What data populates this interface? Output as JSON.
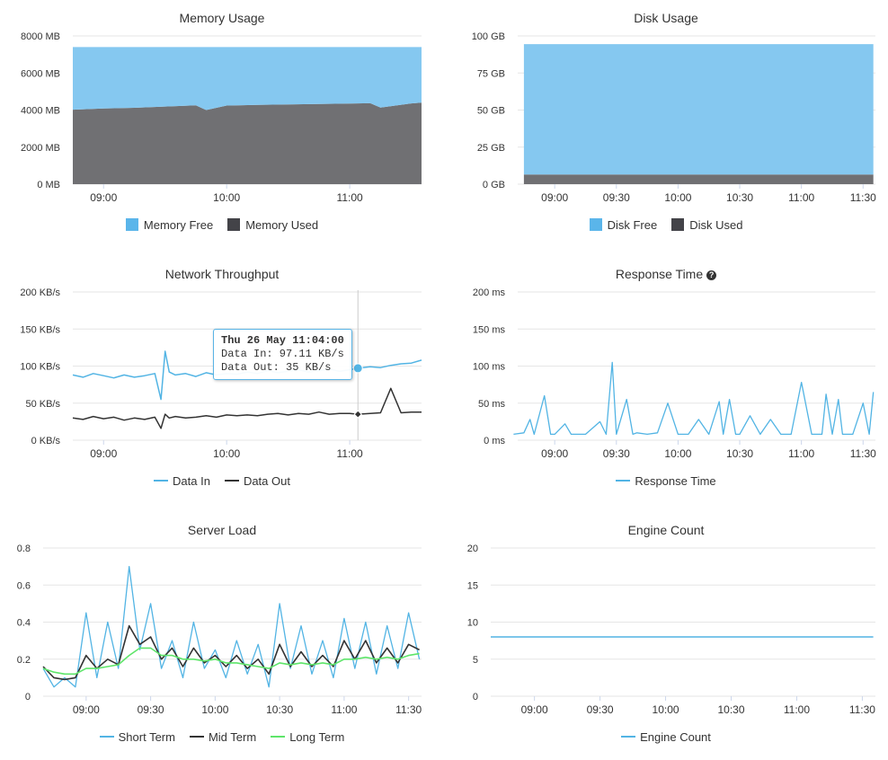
{
  "colors": {
    "free_fill": "#85c8f0",
    "used_fill": "#707073",
    "series_blue": "#52b4e4",
    "series_dark": "#333333",
    "series_green": "#5ee56a",
    "grid": "#e6e6e6"
  },
  "memory": {
    "title": "Memory Usage",
    "y_ticks": [
      "8000 MB",
      "6000 MB",
      "4000 MB",
      "2000 MB",
      "0 MB"
    ],
    "x_ticks": [
      "09:00",
      "10:00",
      "11:00"
    ],
    "legend": [
      {
        "label": "Memory Free",
        "color": "#5ab5ea",
        "icon": "square"
      },
      {
        "label": "Memory Used",
        "color": "#434348",
        "icon": "square"
      }
    ]
  },
  "disk": {
    "title": "Disk Usage",
    "y_ticks": [
      "100 GB",
      "75 GB",
      "50 GB",
      "25 GB",
      "0 GB"
    ],
    "x_ticks": [
      "09:00",
      "09:30",
      "10:00",
      "10:30",
      "11:00",
      "11:30"
    ],
    "legend": [
      {
        "label": "Disk Free",
        "color": "#5ab5ea",
        "icon": "square"
      },
      {
        "label": "Disk Used",
        "color": "#434348",
        "icon": "square"
      }
    ]
  },
  "network": {
    "title": "Network Throughput",
    "y_ticks": [
      "200 KB/s",
      "150 KB/s",
      "100 KB/s",
      "50 KB/s",
      "0 KB/s"
    ],
    "x_ticks": [
      "09:00",
      "10:00",
      "11:00"
    ],
    "legend": [
      {
        "label": "Data In",
        "color": "#52b4e4",
        "icon": "line"
      },
      {
        "label": "Data Out",
        "color": "#333333",
        "icon": "line"
      }
    ],
    "tooltip": {
      "title": "Thu 26 May 11:04:00",
      "line1": "Data In: 97.11 KB/s",
      "line2": "Data Out: 35 KB/s"
    }
  },
  "response": {
    "title": "Response Time",
    "help_icon": "question-circle-icon",
    "y_ticks": [
      "200 ms",
      "150 ms",
      "100 ms",
      "50 ms",
      "0 ms"
    ],
    "x_ticks": [
      "09:00",
      "09:30",
      "10:00",
      "10:30",
      "11:00",
      "11:30"
    ],
    "legend": [
      {
        "label": "Response Time",
        "color": "#52b4e4",
        "icon": "line"
      }
    ]
  },
  "load": {
    "title": "Server Load",
    "y_ticks": [
      "0.8",
      "0.6",
      "0.4",
      "0.2",
      "0"
    ],
    "x_ticks": [
      "09:00",
      "09:30",
      "10:00",
      "10:30",
      "11:00",
      "11:30"
    ],
    "legend": [
      {
        "label": "Short Term",
        "color": "#52b4e4",
        "icon": "line"
      },
      {
        "label": "Mid Term",
        "color": "#333333",
        "icon": "line"
      },
      {
        "label": "Long Term",
        "color": "#5ee56a",
        "icon": "line"
      }
    ]
  },
  "engine": {
    "title": "Engine Count",
    "y_ticks": [
      "20",
      "15",
      "10",
      "5",
      "0"
    ],
    "x_ticks": [
      "09:00",
      "09:30",
      "10:00",
      "10:30",
      "11:00",
      "11:30"
    ],
    "legend": [
      {
        "label": "Engine Count",
        "color": "#52b4e4",
        "icon": "line"
      }
    ]
  },
  "chart_data": [
    {
      "type": "area",
      "title": "Memory Usage",
      "x_ticks": [
        "09:00",
        "10:00",
        "11:00"
      ],
      "ylim": [
        0,
        8000
      ],
      "y_unit": "MB",
      "stacked": true,
      "x": [
        "08:45",
        "09:00",
        "09:15",
        "09:30",
        "09:45",
        "09:50",
        "10:00",
        "10:15",
        "10:30",
        "10:45",
        "11:00",
        "11:10",
        "11:15",
        "11:30",
        "11:35"
      ],
      "series": [
        {
          "name": "Memory Used",
          "values": [
            4020,
            4080,
            4120,
            4190,
            4250,
            4000,
            4240,
            4280,
            4300,
            4330,
            4350,
            4370,
            4130,
            4360,
            4400
          ]
        },
        {
          "name": "Memory Free",
          "values": [
            3380,
            3320,
            3280,
            3210,
            3150,
            3400,
            3160,
            3120,
            3100,
            3070,
            3050,
            3030,
            3270,
            3040,
            3000
          ]
        }
      ],
      "legend": "bottom"
    },
    {
      "type": "area",
      "title": "Disk Usage",
      "x_ticks": [
        "09:00",
        "09:30",
        "10:00",
        "10:30",
        "11:00",
        "11:30"
      ],
      "ylim": [
        0,
        100
      ],
      "y_unit": "GB",
      "stacked": true,
      "x": [
        "08:45",
        "11:35"
      ],
      "series": [
        {
          "name": "Disk Used",
          "values": [
            6.5,
            6.5
          ]
        },
        {
          "name": "Disk Free",
          "values": [
            88,
            88
          ]
        }
      ],
      "legend": "bottom"
    },
    {
      "type": "line",
      "title": "Network Throughput",
      "x_ticks": [
        "09:00",
        "10:00",
        "11:00"
      ],
      "ylim": [
        0,
        200
      ],
      "y_unit": "KB/s",
      "x": [
        "08:45",
        "08:50",
        "08:55",
        "09:00",
        "09:05",
        "09:10",
        "09:15",
        "09:20",
        "09:25",
        "09:28",
        "09:30",
        "09:32",
        "09:35",
        "09:40",
        "09:45",
        "09:50",
        "09:55",
        "10:00",
        "10:05",
        "10:10",
        "10:15",
        "10:20",
        "10:25",
        "10:30",
        "10:35",
        "10:40",
        "10:45",
        "10:50",
        "10:55",
        "11:00",
        "11:04",
        "11:10",
        "11:15",
        "11:20",
        "11:25",
        "11:30",
        "11:35"
      ],
      "series": [
        {
          "name": "Data In",
          "values": [
            88,
            85,
            90,
            87,
            84,
            88,
            85,
            87,
            90,
            55,
            120,
            92,
            88,
            90,
            86,
            91,
            88,
            90,
            89,
            92,
            90,
            94,
            91,
            93,
            95,
            92,
            94,
            96,
            93,
            95,
            97.11,
            99,
            98,
            101,
            103,
            104,
            108
          ]
        },
        {
          "name": "Data Out",
          "values": [
            30,
            28,
            32,
            29,
            31,
            27,
            30,
            28,
            31,
            16,
            35,
            30,
            32,
            30,
            31,
            33,
            31,
            34,
            33,
            34,
            33,
            35,
            36,
            34,
            36,
            35,
            38,
            35,
            36,
            36,
            35,
            36,
            37,
            70,
            37,
            38,
            38
          ]
        }
      ],
      "annotations": [
        {
          "x": "11:04",
          "label": "Thu 26 May 11:04:00"
        }
      ],
      "legend": "bottom"
    },
    {
      "type": "line",
      "title": "Response Time",
      "x_ticks": [
        "09:00",
        "09:30",
        "10:00",
        "10:30",
        "11:00",
        "11:30"
      ],
      "ylim": [
        0,
        200
      ],
      "y_unit": "ms",
      "x": [
        "08:40",
        "08:45",
        "08:48",
        "08:50",
        "08:55",
        "08:58",
        "09:00",
        "09:05",
        "09:08",
        "09:10",
        "09:15",
        "09:22",
        "09:25",
        "09:28",
        "09:30",
        "09:35",
        "09:38",
        "09:40",
        "09:45",
        "09:50",
        "09:55",
        "10:00",
        "10:05",
        "10:10",
        "10:15",
        "10:20",
        "10:22",
        "10:25",
        "10:28",
        "10:30",
        "10:35",
        "10:40",
        "10:45",
        "10:50",
        "10:55",
        "11:00",
        "11:05",
        "11:10",
        "11:12",
        "11:15",
        "11:18",
        "11:20",
        "11:25",
        "11:30",
        "11:33",
        "11:35"
      ],
      "series": [
        {
          "name": "Response Time",
          "values": [
            8,
            10,
            28,
            8,
            60,
            8,
            8,
            22,
            8,
            8,
            8,
            25,
            8,
            105,
            8,
            55,
            8,
            10,
            8,
            10,
            50,
            8,
            8,
            28,
            8,
            52,
            8,
            55,
            8,
            8,
            33,
            8,
            28,
            8,
            8,
            78,
            8,
            8,
            62,
            8,
            55,
            8,
            8,
            50,
            8,
            65
          ]
        }
      ],
      "legend": "bottom"
    },
    {
      "type": "line",
      "title": "Server Load",
      "x_ticks": [
        "09:00",
        "09:30",
        "10:00",
        "10:30",
        "11:00",
        "11:30"
      ],
      "ylim": [
        0,
        0.8
      ],
      "x": [
        "08:40",
        "08:45",
        "08:50",
        "08:55",
        "09:00",
        "09:05",
        "09:10",
        "09:15",
        "09:20",
        "09:25",
        "09:30",
        "09:35",
        "09:40",
        "09:45",
        "09:50",
        "09:55",
        "10:00",
        "10:05",
        "10:10",
        "10:15",
        "10:20",
        "10:25",
        "10:30",
        "10:35",
        "10:40",
        "10:45",
        "10:50",
        "10:55",
        "11:00",
        "11:05",
        "11:10",
        "11:15",
        "11:20",
        "11:25",
        "11:30",
        "11:35"
      ],
      "series": [
        {
          "name": "Short Term",
          "values": [
            0.15,
            0.05,
            0.1,
            0.05,
            0.45,
            0.1,
            0.4,
            0.15,
            0.7,
            0.25,
            0.5,
            0.15,
            0.3,
            0.1,
            0.4,
            0.15,
            0.25,
            0.1,
            0.3,
            0.12,
            0.28,
            0.05,
            0.5,
            0.15,
            0.38,
            0.12,
            0.3,
            0.1,
            0.42,
            0.15,
            0.4,
            0.12,
            0.38,
            0.15,
            0.45,
            0.2
          ]
        },
        {
          "name": "Mid Term",
          "values": [
            0.16,
            0.1,
            0.09,
            0.1,
            0.22,
            0.15,
            0.2,
            0.17,
            0.38,
            0.28,
            0.32,
            0.2,
            0.26,
            0.16,
            0.26,
            0.18,
            0.22,
            0.16,
            0.22,
            0.15,
            0.2,
            0.12,
            0.28,
            0.16,
            0.24,
            0.16,
            0.22,
            0.16,
            0.3,
            0.2,
            0.3,
            0.18,
            0.26,
            0.18,
            0.28,
            0.25
          ]
        },
        {
          "name": "Long Term",
          "values": [
            0.15,
            0.13,
            0.12,
            0.12,
            0.15,
            0.15,
            0.16,
            0.17,
            0.22,
            0.26,
            0.26,
            0.22,
            0.22,
            0.2,
            0.2,
            0.19,
            0.2,
            0.18,
            0.18,
            0.17,
            0.16,
            0.15,
            0.18,
            0.17,
            0.18,
            0.17,
            0.18,
            0.17,
            0.2,
            0.2,
            0.21,
            0.2,
            0.21,
            0.2,
            0.22,
            0.23
          ]
        }
      ],
      "legend": "bottom"
    },
    {
      "type": "line",
      "title": "Engine Count",
      "x_ticks": [
        "09:00",
        "09:30",
        "10:00",
        "10:30",
        "11:00",
        "11:30"
      ],
      "ylim": [
        0,
        20
      ],
      "x": [
        "08:40",
        "11:35"
      ],
      "series": [
        {
          "name": "Engine Count",
          "values": [
            8,
            8
          ]
        }
      ],
      "legend": "bottom"
    }
  ]
}
